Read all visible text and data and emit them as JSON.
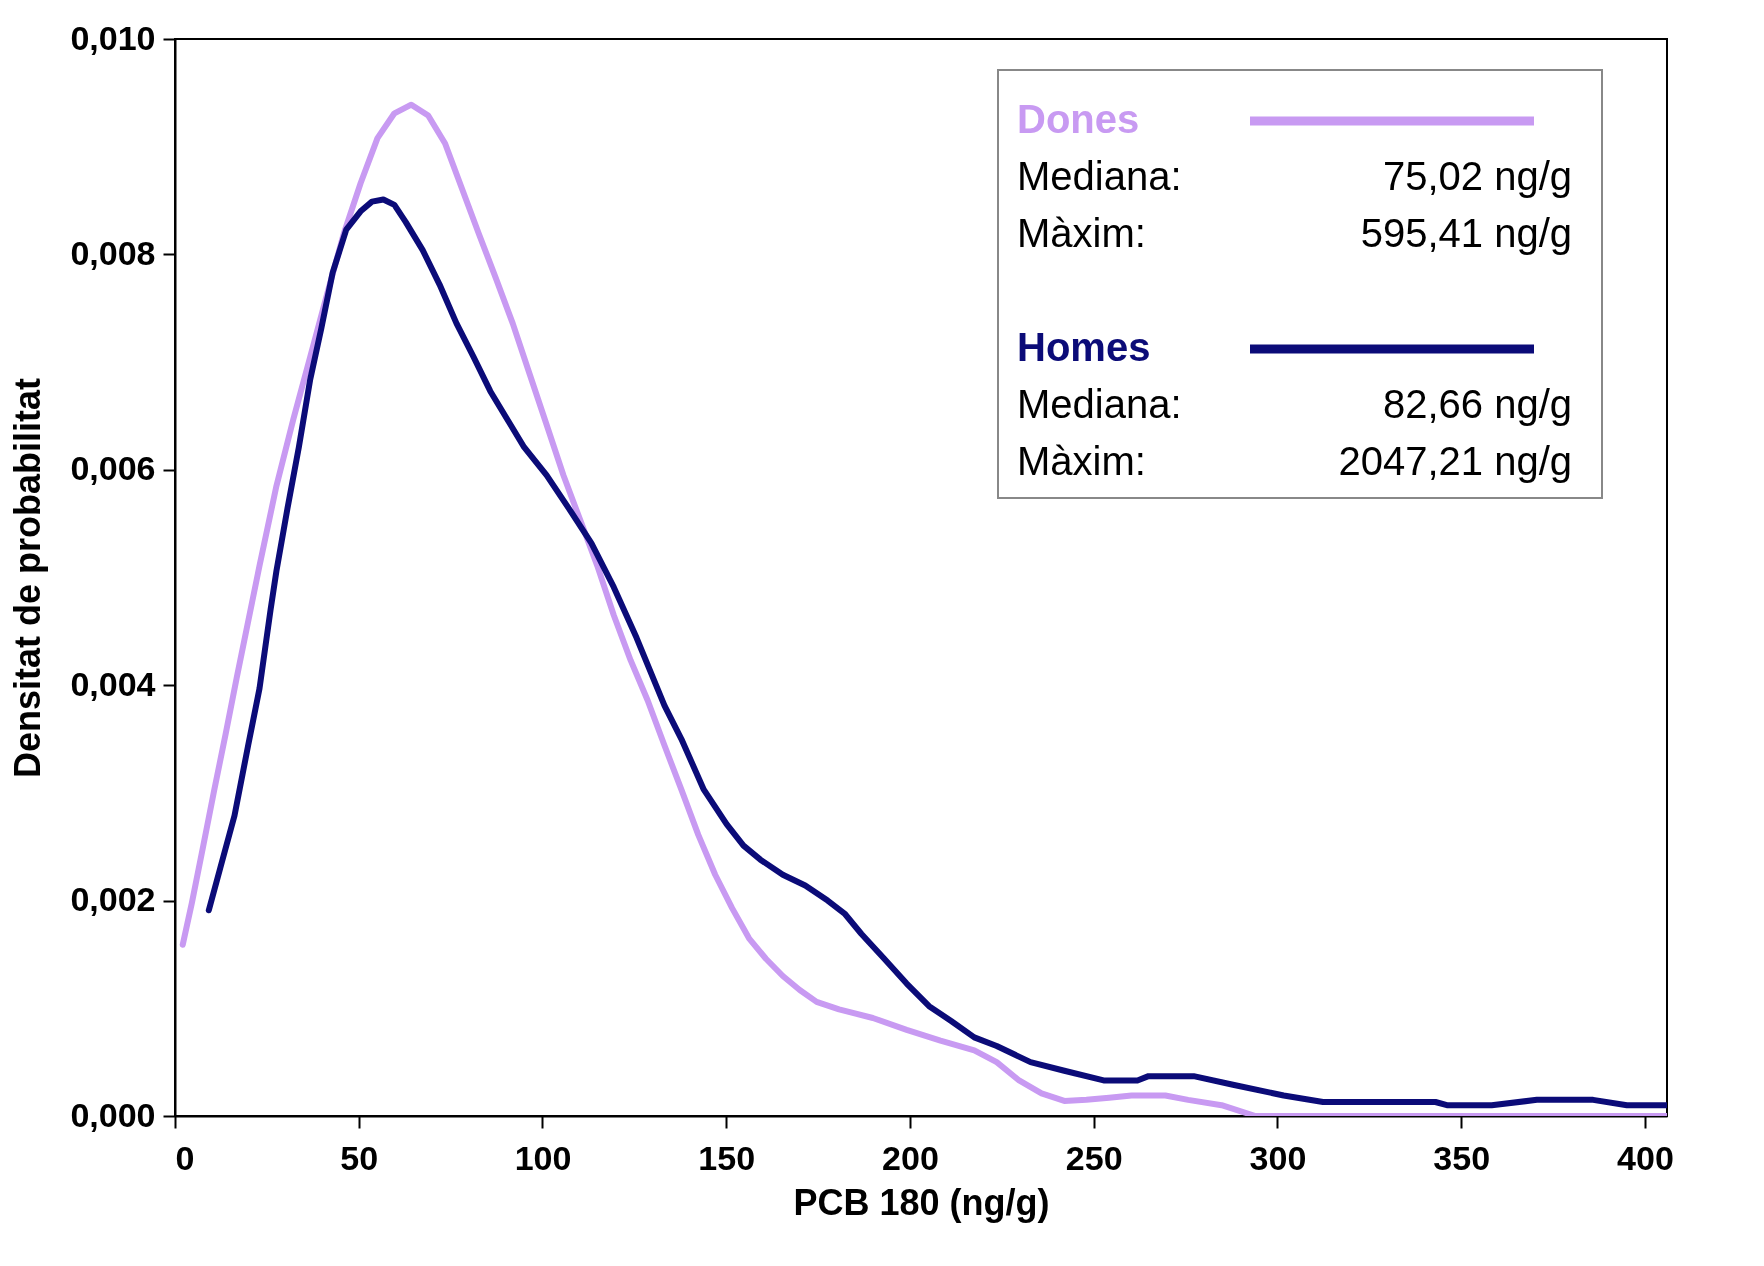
{
  "chart_data": {
    "type": "line",
    "xlabel": "PCB 180 (ng/g)",
    "ylabel": "Densitat de probabilitat",
    "xlim": [
      0,
      406
    ],
    "ylim": [
      0,
      0.01
    ],
    "xticks": [
      0,
      50,
      100,
      150,
      200,
      250,
      300,
      350,
      400
    ],
    "yticks": [
      {
        "value": 0,
        "label": "0,000"
      },
      {
        "value": 0.002,
        "label": "0,002"
      },
      {
        "value": 0.004,
        "label": "0,004"
      },
      {
        "value": 0.006,
        "label": "0,006"
      },
      {
        "value": 0.008,
        "label": "0,008"
      },
      {
        "value": 0.01,
        "label": "0,010"
      }
    ],
    "grid": false,
    "legend": "top right",
    "marker": "none",
    "line_style": "solid",
    "annotations": [
      "Mediana:",
      "75,02 ng/g",
      "Màxim:",
      "595,41 ng/g",
      "Mediana:",
      "82,66 ng/g",
      "Màxim:",
      "2047,21 ng/g"
    ],
    "series": [
      {
        "name": "Dones",
        "color": "#c89af2",
        "x": [
          2.1,
          4.6,
          7.7,
          10.7,
          13.8,
          16.8,
          19.9,
          23,
          27.6,
          32.2,
          36.8,
          41.3,
          45.9,
          50.5,
          55.1,
          59.7,
          64.3,
          68.9,
          73.5,
          78.1,
          82.7,
          87.3,
          91.9,
          96.5,
          101.1,
          105.7,
          110.3,
          114.9,
          119.4,
          124,
          128.6,
          133.2,
          137.8,
          142.4,
          147,
          151.6,
          156.2,
          160.8,
          165.4,
          170,
          174.6,
          180.7,
          189.9,
          199.1,
          208.3,
          217.5,
          223.6,
          229.7,
          235.8,
          242,
          248,
          254.2,
          260.3,
          269.5,
          275.7,
          284.8,
          294,
          315.5,
          330.8,
          382.8,
          385.9,
          406
        ],
        "values": [
          0.00159,
          0.00198,
          0.00251,
          0.00303,
          0.00355,
          0.00407,
          0.00459,
          0.00511,
          0.00585,
          0.00647,
          0.00705,
          0.00762,
          0.00819,
          0.00866,
          0.00908,
          0.00931,
          0.00939,
          0.00929,
          0.00903,
          0.00861,
          0.00819,
          0.00778,
          0.00736,
          0.00689,
          0.00642,
          0.00595,
          0.00553,
          0.00511,
          0.00465,
          0.00423,
          0.00386,
          0.00344,
          0.00303,
          0.00261,
          0.00224,
          0.00193,
          0.00165,
          0.00146,
          0.0013,
          0.00117,
          0.00106,
          0.00099,
          0.00091,
          0.0008,
          0.0007,
          0.00061,
          0.0005,
          0.00033,
          0.00021,
          0.00014,
          0.00015,
          0.00017,
          0.00019,
          0.00019,
          0.00015,
          0.0001,
          0,
          0,
          0,
          0,
          0,
          0
        ]
      },
      {
        "name": "Homes",
        "color": "#0b0b78",
        "x": [
          9.2,
          12.3,
          16.2,
          19.9,
          23,
          26,
          27.6,
          30.6,
          33.7,
          36.8,
          39.8,
          42.9,
          46.6,
          50.5,
          53.6,
          56.7,
          59.7,
          62.8,
          67.4,
          72,
          76.6,
          81.2,
          85.8,
          90.4,
          95,
          101.1,
          107.2,
          113.3,
          119.4,
          125.6,
          133.2,
          137.8,
          143.9,
          150.1,
          154.7,
          159.3,
          165.4,
          171.5,
          177.6,
          182.2,
          186.8,
          193,
          199.1,
          205.2,
          211.3,
          217.5,
          223.6,
          232.8,
          242,
          252.7,
          261.9,
          264.9,
          277.2,
          287.9,
          301.7,
          312.4,
          343,
          346.1,
          358.3,
          370.6,
          385.9,
          395.1,
          402.8,
          406
        ],
        "values": [
          0.00191,
          0.0023,
          0.00279,
          0.00344,
          0.00397,
          0.0047,
          0.00506,
          0.00564,
          0.00621,
          0.00684,
          0.00731,
          0.00783,
          0.00823,
          0.0084,
          0.00849,
          0.00851,
          0.00846,
          0.0083,
          0.00804,
          0.00772,
          0.00736,
          0.00705,
          0.00673,
          0.00647,
          0.00621,
          0.00595,
          0.00564,
          0.00532,
          0.00491,
          0.00444,
          0.00381,
          0.0035,
          0.00303,
          0.00271,
          0.00251,
          0.00238,
          0.00224,
          0.00214,
          0.002,
          0.00188,
          0.00169,
          0.00146,
          0.00123,
          0.00102,
          0.00088,
          0.00073,
          0.00065,
          0.0005,
          0.00042,
          0.00033,
          0.00033,
          0.00037,
          0.00037,
          0.00029,
          0.00019,
          0.00013,
          0.00013,
          0.0001,
          0.0001,
          0.00015,
          0.00015,
          0.0001,
          0.0001,
          0.0001
        ]
      }
    ]
  }
}
